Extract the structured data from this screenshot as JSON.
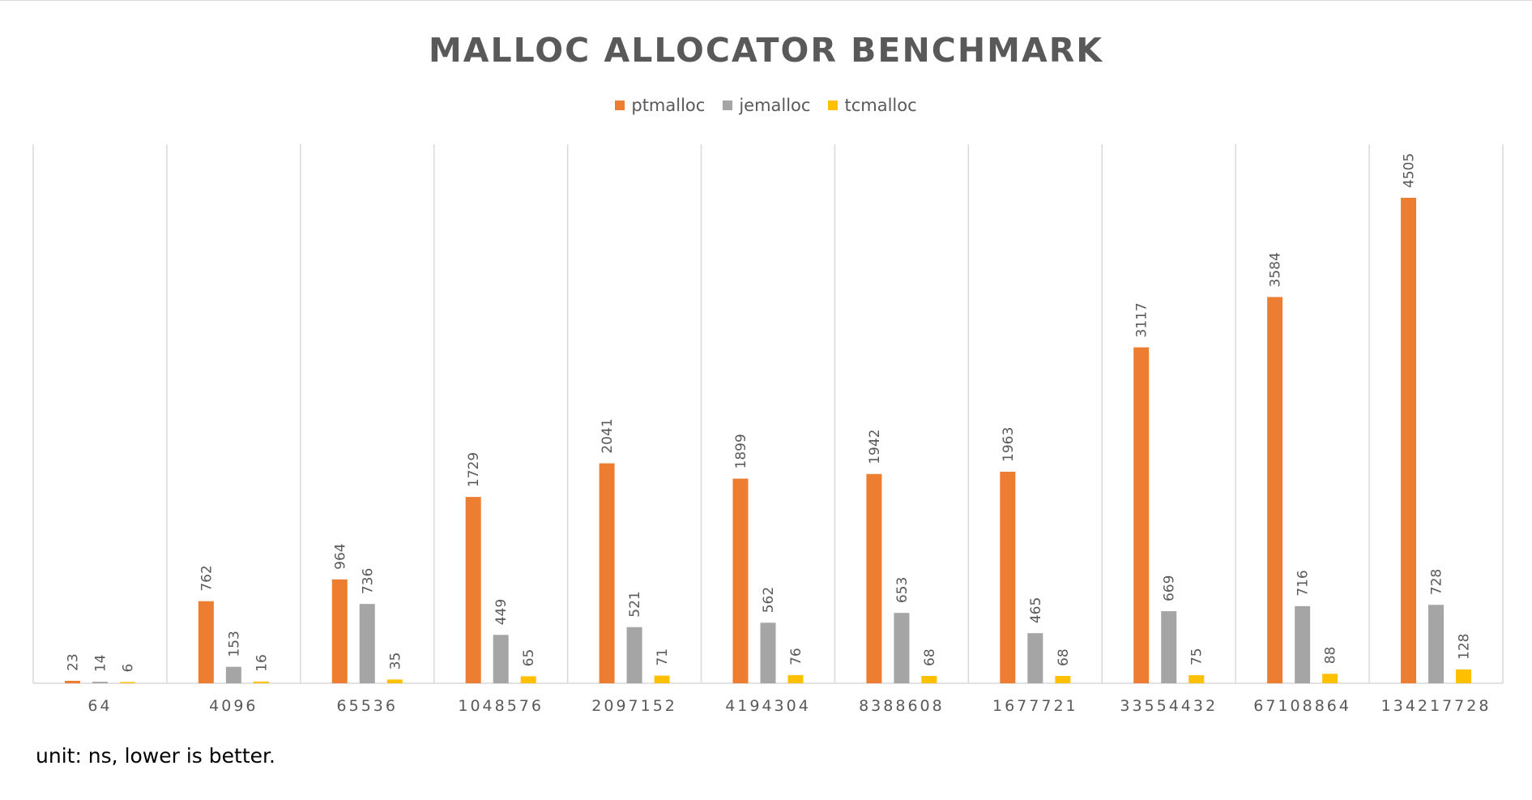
{
  "chart_data": {
    "type": "bar",
    "title": "MALLOC ALLOCATOR BENCHMARK",
    "xlabel": "",
    "ylabel": "",
    "categories": [
      "64",
      "4096",
      "65536",
      "1048576",
      "2097152",
      "4194304",
      "8388608",
      "1677721",
      "33554432",
      "67108864",
      "134217728"
    ],
    "series": [
      {
        "name": "ptmalloc",
        "color": "#ed7d31",
        "values": [
          23,
          762,
          964,
          1729,
          2041,
          1899,
          1942,
          1963,
          3117,
          3584,
          4505
        ]
      },
      {
        "name": "jemalloc",
        "color": "#a5a5a5",
        "values": [
          14,
          153,
          736,
          449,
          521,
          562,
          653,
          465,
          669,
          716,
          728
        ]
      },
      {
        "name": "tcmalloc",
        "color": "#ffc000",
        "values": [
          6,
          16,
          35,
          65,
          71,
          76,
          68,
          68,
          75,
          88,
          128
        ]
      }
    ],
    "ylim": [
      0,
      5000
    ],
    "grid": "vertical category separators",
    "legend_position": "top"
  },
  "footnote": "unit: ns, lower is better."
}
